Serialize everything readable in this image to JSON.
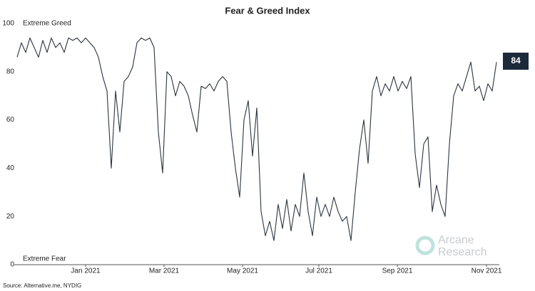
{
  "chart_data": {
    "type": "line",
    "title": "Fear & Greed Index",
    "annotations": [
      "Extreme Greed",
      "Extreme Fear"
    ],
    "source": "Source: Alternative.me, NYDIG",
    "watermark": [
      "Arcane",
      "Research"
    ],
    "color": "#2b3440",
    "values": [
      86,
      92,
      88,
      94,
      90,
      86,
      93,
      88,
      94,
      90,
      92,
      88,
      94,
      93,
      94,
      92,
      94,
      92,
      90,
      86,
      78,
      72,
      40,
      72,
      55,
      76,
      78,
      82,
      92,
      94,
      93,
      94,
      90,
      55,
      38,
      80,
      78,
      70,
      76,
      74,
      70,
      62,
      55,
      74,
      73,
      75,
      72,
      76,
      78,
      76,
      55,
      40,
      28,
      60,
      68,
      45,
      65,
      22,
      12,
      18,
      10,
      25,
      15,
      27,
      14,
      25,
      20,
      38,
      22,
      12,
      28,
      20,
      25,
      20,
      28,
      22,
      18,
      20,
      10,
      30,
      48,
      60,
      42,
      72,
      78,
      70,
      75,
      72,
      78,
      72,
      76,
      73,
      78,
      46,
      32,
      50,
      53,
      22,
      33,
      25,
      20,
      50,
      70,
      75,
      72,
      78,
      84,
      72,
      74,
      68,
      75,
      72,
      84
    ],
    "xlim": [
      0,
      112
    ],
    "xticks": [
      {
        "value": 16,
        "label": "Jan 2021"
      },
      {
        "value": 34.33,
        "label": "Mar 2021"
      },
      {
        "value": 52.67,
        "label": "May 2021"
      },
      {
        "value": 70.5,
        "label": "Jul 2021"
      },
      {
        "value": 88.83,
        "label": "Sep 2021"
      },
      {
        "value": 109.67,
        "label": "Nov 2021"
      }
    ],
    "ylim": [
      0,
      100
    ],
    "yticks": [
      0,
      20,
      40,
      60,
      80,
      100
    ],
    "grid": false
  }
}
